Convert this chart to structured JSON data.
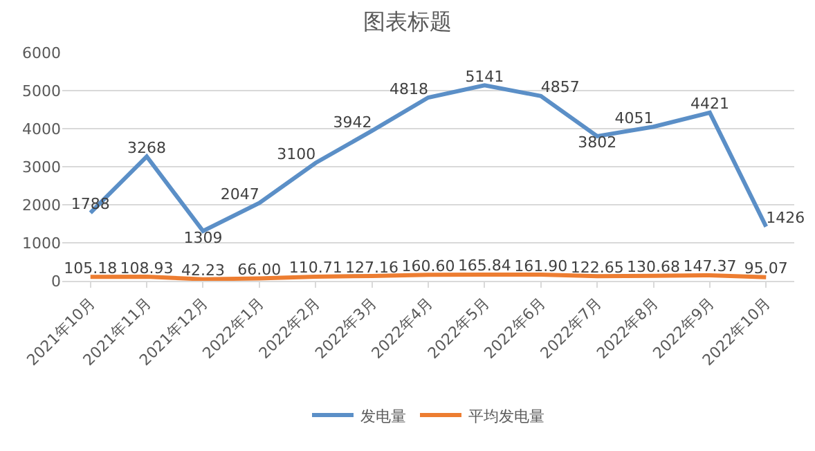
{
  "chart_data": {
    "type": "line",
    "title": "图表标题",
    "categories": [
      "2021年10月",
      "2021年11月",
      "2021年12月",
      "2022年1月",
      "2022年2月",
      "2022年3月",
      "2022年4月",
      "2022年5月",
      "2022年6月",
      "2022年7月",
      "2022年8月",
      "2022年9月",
      "2022年10月"
    ],
    "series": [
      {
        "name": "发电量",
        "color": "#5b8fc7",
        "values": [
          1788,
          3268,
          1309,
          2047,
          3100,
          3942,
          4818,
          5141,
          4857,
          3802,
          4051,
          4421,
          1426
        ]
      },
      {
        "name": "平均发电量",
        "color": "#ed7d31",
        "values": [
          105.18,
          108.93,
          42.23,
          66.0,
          110.71,
          127.16,
          160.6,
          165.84,
          161.9,
          122.65,
          130.68,
          147.37,
          95.07
        ],
        "value_labels": [
          "105.18",
          "108.93",
          "42.23",
          "66.00",
          "110.71",
          "127.16",
          "160.60",
          "165.84",
          "161.90",
          "122.65",
          "130.68",
          "147.37",
          "95.07"
        ]
      }
    ],
    "ylim": [
      0,
      6000
    ],
    "yticks": [
      0,
      1000,
      2000,
      3000,
      4000,
      5000,
      6000
    ],
    "grid": "y",
    "legend": "bottom",
    "marker": "none",
    "line_style": "solid",
    "data_labels": true
  }
}
